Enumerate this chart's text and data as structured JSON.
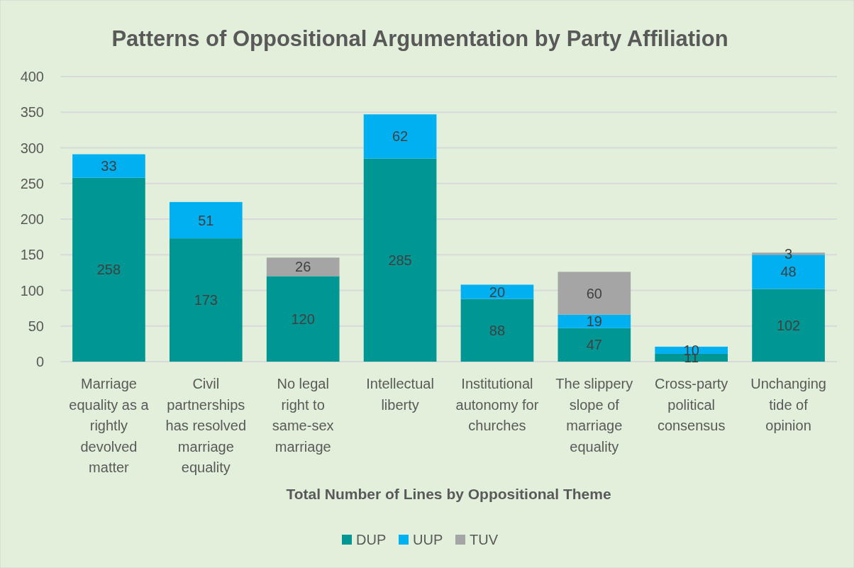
{
  "chart_data": {
    "type": "bar",
    "title": "Patterns of Oppositional Argumentation by Party Affiliation",
    "xlabel": "Total Number of Lines by Oppositional Theme",
    "categories": [
      "Marriage equality as a rightly devolved matter",
      "Civil partnerships has resolved marriage equality",
      "No legal right to same-sex marriage",
      "Intellectual liberty",
      "Institutional autonomy for churches",
      "The slippery slope of marriage equality",
      "Cross-party political consensus",
      "Unchanging tide of opinion"
    ],
    "series": [
      {
        "name": "DUP",
        "color": "#009694",
        "values": [
          258,
          173,
          120,
          285,
          88,
          47,
          11,
          102
        ]
      },
      {
        "name": "UUP",
        "color": "#00b0f0",
        "values": [
          33,
          51,
          null,
          62,
          20,
          19,
          10,
          48
        ]
      },
      {
        "name": "TUV",
        "color": "#a5a5a5",
        "values": [
          null,
          null,
          26,
          null,
          null,
          60,
          null,
          3
        ]
      }
    ],
    "stacked": true,
    "ylim": [
      0,
      400
    ],
    "yticks": [
      0,
      50,
      100,
      150,
      200,
      250,
      300,
      350,
      400
    ],
    "grid": "y",
    "legend": "bottom",
    "data_labels": true
  }
}
